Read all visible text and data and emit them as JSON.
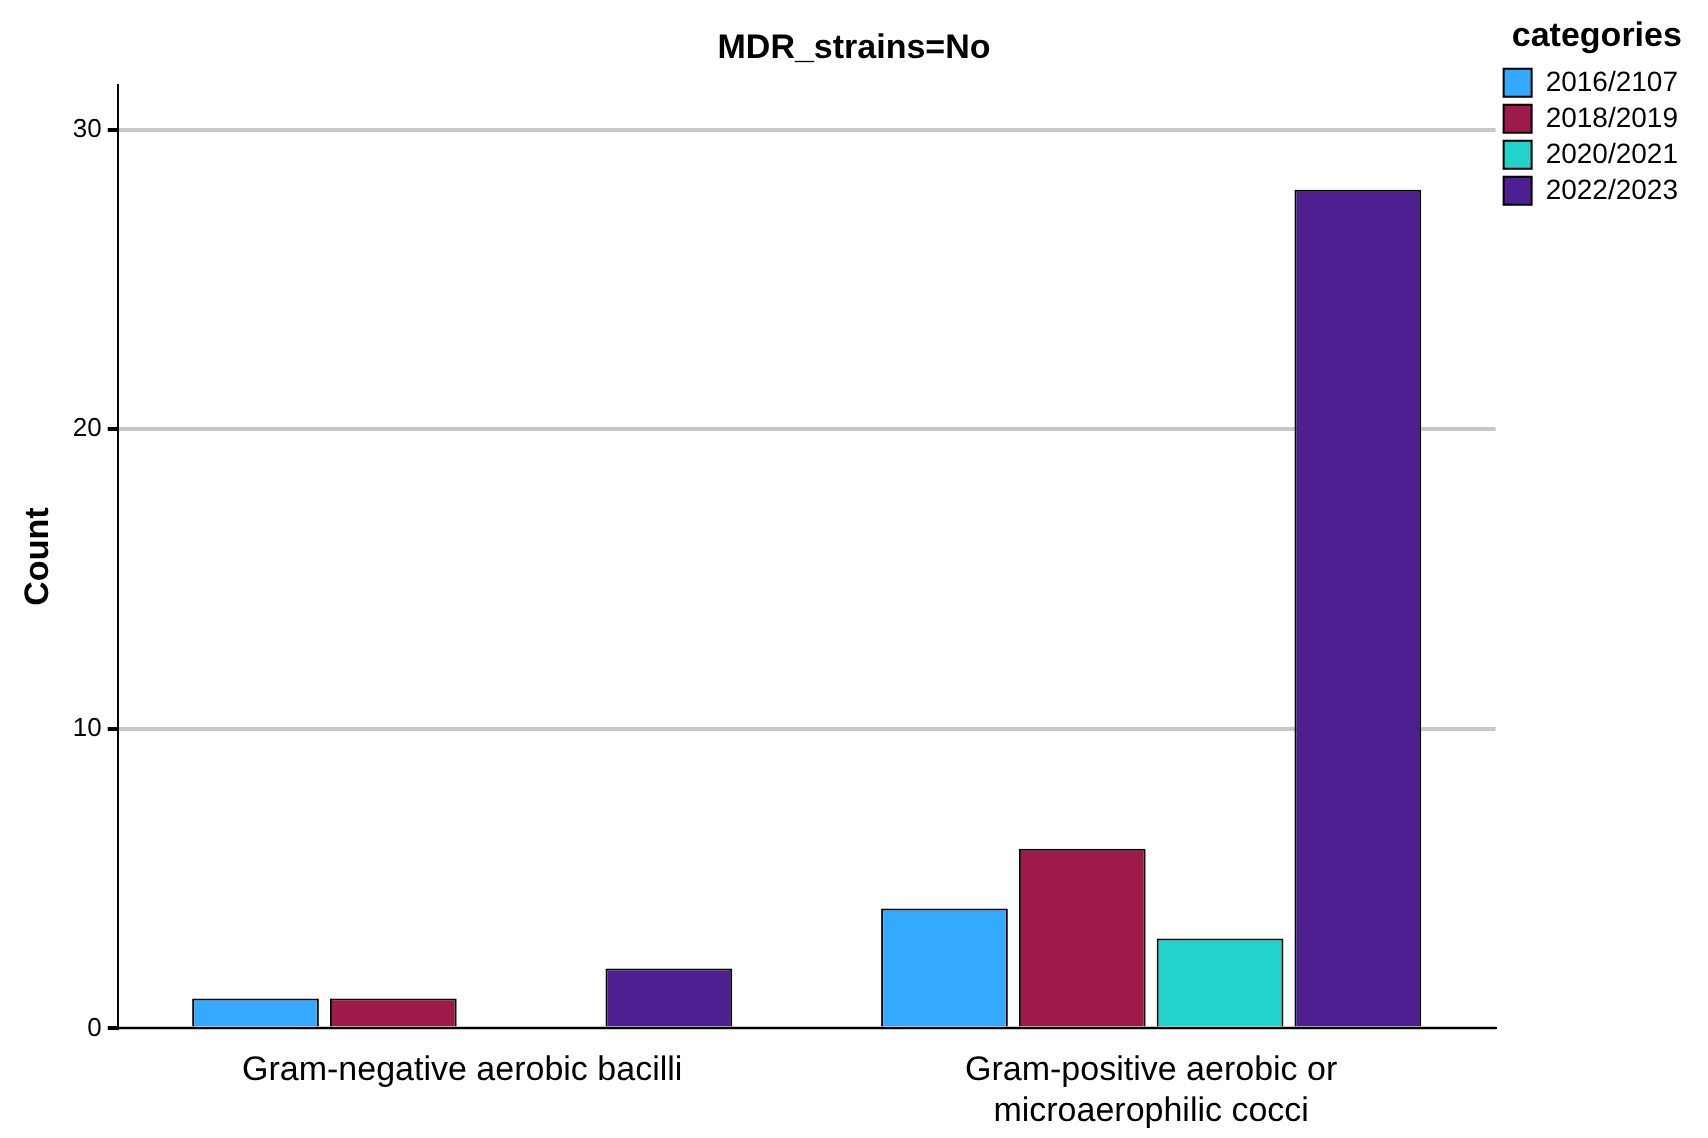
{
  "chart_data": {
    "type": "bar",
    "title": "MDR_strains=No",
    "ylabel": "Count",
    "legend_title": "categories",
    "legend": "top right",
    "categories": [
      "Gram-negative aerobic bacilli",
      "Gram-positive aerobic or microaerophilic cocci"
    ],
    "series": [
      {
        "name": "2016/2107",
        "color": "#33aaff",
        "values": [
          1,
          4
        ]
      },
      {
        "name": "2018/2019",
        "color": "#9e1a4a",
        "values": [
          1,
          6
        ]
      },
      {
        "name": "2020/2021",
        "color": "#22d3cc",
        "values": [
          null,
          3
        ]
      },
      {
        "name": "2022/2023",
        "color": "#4e1f91",
        "values": [
          2,
          28
        ]
      }
    ],
    "ylim": [
      0,
      31.5
    ],
    "yticks": [
      0,
      10,
      20,
      30
    ],
    "grid": "y"
  }
}
